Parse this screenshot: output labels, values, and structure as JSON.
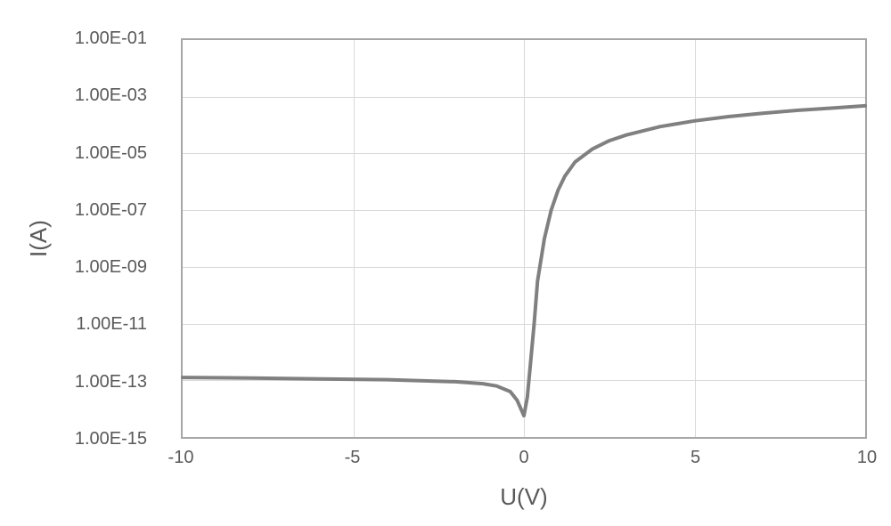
{
  "chart": {
    "type": "line",
    "background_color": "#ffffff",
    "plot_border_color": "#a6a6a6",
    "grid_color": "#d9d9d9",
    "text_color": "#595959",
    "line_color": "#808080",
    "line_width": 4,
    "xlabel": "U(V)",
    "ylabel": "I(A)",
    "axis_label_fontsize": 26,
    "tick_fontsize": 20,
    "yscale": "log",
    "xlim": [
      -10,
      10
    ],
    "ylim_exp": [
      -15,
      -1
    ],
    "yticks_exp": [
      -15,
      -13,
      -11,
      -9,
      -7,
      -5,
      -3,
      -1
    ],
    "ytick_labels": [
      "1.00E-15",
      "1.00E-13",
      "1.00E-11",
      "1.00E-09",
      "1.00E-07",
      "1.00E-05",
      "1.00E-03",
      "1.00E-01"
    ],
    "xticks": [
      -10,
      -5,
      0,
      5,
      10
    ],
    "xtick_labels": [
      "-10",
      "-5",
      "0",
      "5",
      "10"
    ],
    "series": {
      "x": [
        -10,
        -8,
        -6,
        -4,
        -2,
        -1.2,
        -0.8,
        -0.4,
        -0.2,
        0.0,
        0.1,
        0.2,
        0.3,
        0.4,
        0.6,
        0.8,
        1.0,
        1.2,
        1.5,
        2.0,
        2.5,
        3.0,
        4.0,
        5.0,
        6.0,
        7.0,
        8.0,
        9.0,
        10.0
      ],
      "y_exp": [
        -12.9,
        -12.92,
        -12.95,
        -12.98,
        -13.05,
        -13.12,
        -13.2,
        -13.4,
        -13.7,
        -14.25,
        -13.6,
        -12.3,
        -11.0,
        -9.5,
        -8.0,
        -7.0,
        -6.3,
        -5.8,
        -5.3,
        -4.85,
        -4.55,
        -4.35,
        -4.05,
        -3.85,
        -3.7,
        -3.58,
        -3.48,
        -3.4,
        -3.32
      ]
    }
  }
}
